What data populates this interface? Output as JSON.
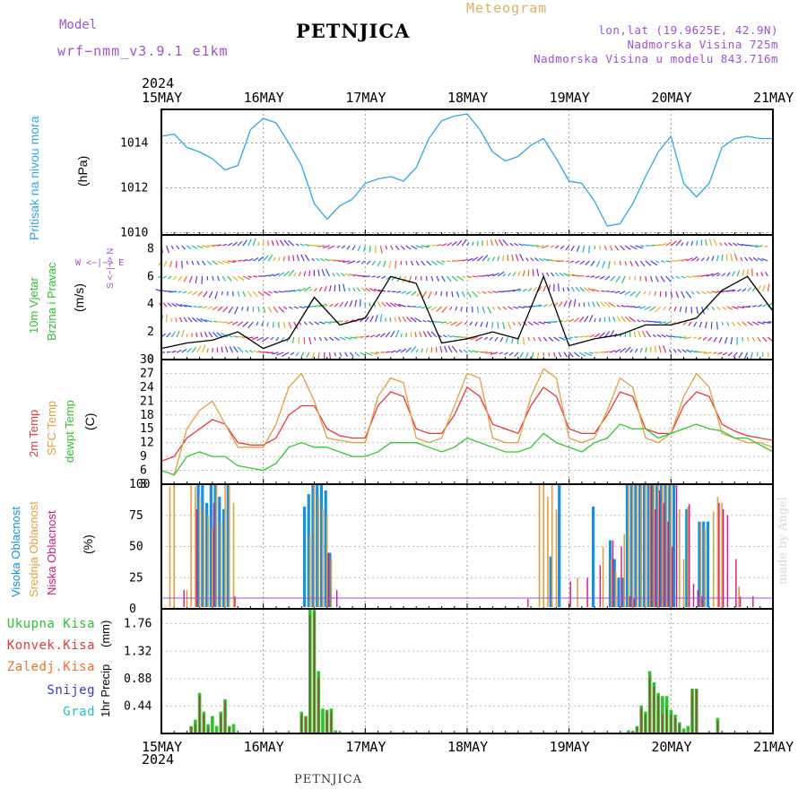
{
  "header": {
    "title": "PETNJICA",
    "model_label": "Model",
    "model_name": "wrf−nmm_v3.9.1 e1km",
    "meteogram_label": "Meteogram",
    "location_line": "lon,lat (19.9625E, 42.9N)",
    "altitude_line": "Nadmorska Visina 725m",
    "model_altitude_line": "Nadmorska Visina u modelu 843.716m",
    "year": "2024",
    "footer": "PETNJICA",
    "credit": "made by Angel"
  },
  "colors": {
    "pressure": "#30a8e0",
    "temp2m": "#e83838",
    "sfc_temp": "#e0a040",
    "dewpoint": "#30c830",
    "cloud_high": "#1890e0",
    "cloud_mid": "#e0a040",
    "cloud_low": "#d01880",
    "total_precip": "#30c030",
    "conv_precip": "#e83838",
    "snow": "#3838d0",
    "hail": "#20c0c0",
    "violet": "#a050d0"
  },
  "chart_data": [
    {
      "type": "line",
      "name": "pressure",
      "ylabel": "Pritisak na nivou mora",
      "unit": "(hPa)",
      "x_ticks": [
        "15MAY",
        "16MAY",
        "17MAY",
        "18MAY",
        "19MAY",
        "20MAY",
        "21MAY"
      ],
      "ylim": [
        1009.9,
        1015.5
      ],
      "y_ticks": [
        1010,
        1012,
        1014
      ],
      "x_hours": [
        0,
        3,
        6,
        9,
        12,
        15,
        18,
        21,
        24,
        27,
        30,
        33,
        36,
        39,
        42,
        45,
        48,
        51,
        54,
        57,
        60,
        63,
        66,
        69,
        72,
        75,
        78,
        81,
        84,
        87,
        90,
        93,
        96,
        99,
        102,
        105,
        108,
        111,
        114,
        117,
        120,
        123,
        126,
        129,
        132,
        135,
        138,
        141,
        144
      ],
      "values": [
        1014.3,
        1014.4,
        1013.8,
        1013.6,
        1013.3,
        1012.8,
        1013.0,
        1014.6,
        1015.1,
        1014.9,
        1014.0,
        1013.0,
        1011.3,
        1010.6,
        1011.2,
        1011.5,
        1012.2,
        1012.4,
        1012.5,
        1012.3,
        1012.9,
        1014.2,
        1015.0,
        1015.2,
        1015.3,
        1014.6,
        1013.6,
        1013.2,
        1013.4,
        1013.9,
        1014.2,
        1013.3,
        1012.3,
        1012.2,
        1011.4,
        1010.3,
        1010.4,
        1011.3,
        1012.5,
        1013.6,
        1014.3,
        1012.2,
        1011.6,
        1012.2,
        1013.8,
        1014.2,
        1014.3,
        1014.2,
        1014.2
      ]
    },
    {
      "type": "line",
      "name": "wind",
      "ylabel": "10m Vjetar Brzina i Pravac",
      "unit": "(m/s)",
      "compass": "W <−|−> E  S <−|−> N",
      "ylim": [
        0,
        9
      ],
      "y_ticks": [
        0,
        2,
        4,
        6,
        8
      ],
      "x_hours": [
        0,
        6,
        12,
        18,
        24,
        30,
        36,
        42,
        48,
        54,
        60,
        66,
        72,
        78,
        84,
        90,
        96,
        102,
        108,
        114,
        120,
        126,
        132,
        138,
        144
      ],
      "series": [
        {
          "name": "wind_speed",
          "values": [
            0.8,
            1.2,
            1.4,
            2.0,
            0.8,
            1.5,
            4.5,
            2.5,
            3.0,
            6.0,
            5.5,
            1.2,
            1.5,
            2.0,
            1.5,
            6.0,
            1.0,
            1.5,
            1.8,
            2.5,
            2.5,
            3.0,
            5.0,
            6.0,
            3.5
          ]
        }
      ]
    },
    {
      "type": "line",
      "name": "temperature",
      "ylabel_series": [
        "2m Temp",
        "SFC Temp",
        "dewpt Temp"
      ],
      "unit": "(C)",
      "ylim": [
        3,
        30
      ],
      "y_ticks": [
        3,
        6,
        9,
        12,
        15,
        18,
        21,
        24,
        27,
        30
      ],
      "x_hours": [
        0,
        3,
        6,
        9,
        12,
        15,
        18,
        21,
        24,
        27,
        30,
        33,
        36,
        39,
        42,
        45,
        48,
        51,
        54,
        57,
        60,
        63,
        66,
        69,
        72,
        75,
        78,
        81,
        84,
        87,
        90,
        93,
        96,
        99,
        102,
        105,
        108,
        111,
        114,
        117,
        120,
        123,
        126,
        129,
        132,
        135,
        138,
        141,
        144
      ],
      "series": [
        {
          "name": "2m Temp",
          "values": [
            8,
            9,
            13,
            15,
            17,
            16,
            12,
            11.5,
            11.5,
            13,
            18,
            20,
            20,
            15,
            13.5,
            13,
            13,
            20,
            23,
            22,
            15,
            14,
            14,
            18,
            24,
            22,
            16,
            15,
            14,
            20,
            24,
            22,
            15,
            14,
            14,
            18,
            23,
            22,
            15,
            14,
            14,
            20,
            23,
            22,
            16,
            14.5,
            13.5,
            13,
            12.5
          ]
        },
        {
          "name": "SFC Temp",
          "values": [
            6,
            5,
            15,
            19,
            21,
            16,
            11,
            11,
            11,
            16,
            24,
            27,
            21,
            13,
            12.5,
            12,
            12,
            22,
            26,
            25,
            13,
            12,
            13,
            20,
            27,
            26,
            13,
            12,
            12,
            22,
            28,
            26,
            13,
            12,
            13,
            19,
            26,
            24,
            13,
            12,
            14,
            22,
            27,
            24,
            14,
            13,
            12,
            12,
            11
          ]
        },
        {
          "name": "dewpt Temp",
          "values": [
            6,
            5,
            9,
            10,
            9,
            9,
            7,
            6.5,
            6,
            7.5,
            11,
            12,
            11,
            11,
            10,
            9,
            9,
            10,
            12,
            12,
            12,
            11,
            10,
            11,
            13,
            12,
            11,
            10,
            10,
            11,
            14,
            12,
            11,
            10,
            12,
            13,
            16,
            15,
            15,
            13,
            14,
            15,
            16,
            15,
            14.5,
            13,
            13,
            11.5,
            10
          ]
        }
      ]
    },
    {
      "type": "bar",
      "name": "clouds",
      "ylabel_series": [
        "Visoka Oblacnost",
        "Srednja Oblacnost",
        "Niska Oblacnost"
      ],
      "unit": "(%)",
      "ylim": [
        0,
        100
      ],
      "y_ticks": [
        0,
        25,
        50,
        75,
        100
      ],
      "series": [
        {
          "name": "Visoka Oblacnost",
          "x_hours": [
            9,
            10,
            11,
            12,
            13,
            14,
            15,
            16,
            34,
            35,
            36,
            37,
            38,
            39,
            40,
            92,
            94,
            102,
            106,
            107,
            108,
            109,
            110,
            111,
            112,
            113,
            114,
            115,
            116,
            117,
            118,
            119,
            120,
            121,
            124,
            127,
            128,
            129
          ],
          "values": [
            100,
            100,
            85,
            100,
            100,
            90,
            80,
            100,
            82,
            92,
            100,
            100,
            100,
            95,
            45,
            42,
            100,
            82,
            55,
            40,
            25,
            25,
            100,
            100,
            100,
            100,
            100,
            100,
            100,
            100,
            100,
            100,
            100,
            100,
            80,
            70,
            70,
            70
          ]
        },
        {
          "name": "Srednja Oblacnost",
          "x_hours": [
            1,
            2,
            3,
            6,
            7,
            8,
            9,
            10,
            11,
            12,
            13,
            14,
            15,
            16,
            17,
            35,
            36,
            37,
            38,
            39,
            40,
            89,
            90,
            91,
            92,
            93,
            98,
            104,
            106,
            107,
            109,
            110,
            111,
            112,
            113,
            114,
            115,
            116,
            117,
            118,
            119,
            120,
            122,
            123,
            124,
            127,
            128,
            130,
            131,
            132,
            136
          ],
          "values": [
            2,
            98,
            100,
            15,
            100,
            98,
            90,
            80,
            75,
            65,
            100,
            70,
            100,
            100,
            85,
            60,
            100,
            90,
            80,
            75,
            40,
            100,
            100,
            90,
            100,
            80,
            25,
            50,
            40,
            30,
            60,
            100,
            100,
            100,
            100,
            100,
            100,
            100,
            100,
            100,
            100,
            100,
            80,
            40,
            82,
            70,
            65,
            78,
            90,
            85,
            18
          ]
        },
        {
          "name": "Niska Oblacnost",
          "x_hours": [
            5,
            8,
            12,
            17,
            39,
            41,
            86,
            96,
            100,
            103,
            106,
            108,
            110,
            111,
            115,
            116,
            117,
            118,
            119,
            120,
            121,
            124,
            125,
            126,
            127,
            131,
            132,
            133,
            135,
            136,
            139
          ],
          "values": [
            15,
            80,
            85,
            10,
            45,
            15,
            8,
            22,
            25,
            35,
            55,
            50,
            10,
            8,
            100,
            80,
            95,
            85,
            70,
            50,
            100,
            84,
            20,
            15,
            10,
            85,
            80,
            75,
            40,
            10,
            10
          ]
        }
      ]
    },
    {
      "type": "bar",
      "name": "precipitation",
      "ylabel": "1hr Precip",
      "unit": "(mm)",
      "legend": [
        "Ukupna Kisa",
        "Konvek.Kisa",
        "Zaledj.Kisa",
        "Snijeg",
        "Grad"
      ],
      "ylim": [
        0,
        2.0
      ],
      "y_ticks": [
        0.44,
        0.88,
        1.32,
        1.76
      ],
      "series": [
        {
          "name": "Ukupna Kisa",
          "x_hours": [
            7,
            8,
            9,
            10,
            11,
            12,
            13,
            14,
            15,
            16,
            17,
            33,
            34,
            35,
            36,
            37,
            38,
            39,
            40,
            41,
            42,
            110,
            111,
            112,
            113,
            114,
            115,
            116,
            117,
            118,
            119,
            120,
            121,
            122,
            123,
            124,
            125,
            126,
            131
          ],
          "values": [
            0.12,
            0.22,
            0.65,
            0.35,
            0.15,
            0.28,
            0.12,
            0.35,
            0.55,
            0.12,
            0.15,
            0.35,
            0.28,
            2.0,
            2.0,
            1.0,
            0.4,
            0.38,
            0.4,
            0.05,
            0.02,
            0.05,
            0.04,
            0.12,
            0.45,
            0.35,
            1.0,
            0.82,
            0.65,
            0.6,
            0.6,
            0.38,
            0.3,
            0.18,
            0.08,
            0.12,
            0.72,
            0.72,
            0.25
          ]
        },
        {
          "name": "Konvek.Kisa",
          "x_hours": [
            7,
            8,
            9,
            10,
            11,
            14,
            15,
            16,
            33,
            34,
            35,
            36,
            37,
            39,
            40,
            111,
            112,
            113,
            114,
            115,
            116,
            117,
            118,
            119,
            120,
            121,
            122,
            125,
            126,
            131
          ],
          "values": [
            0.1,
            0.15,
            0.6,
            0.3,
            0.1,
            0.3,
            0.5,
            0.1,
            0.3,
            0.25,
            1.9,
            1.95,
            0.9,
            0.35,
            0.35,
            0.03,
            0.1,
            0.4,
            0.3,
            0.9,
            0.75,
            0.6,
            0.3,
            0.4,
            0.3,
            0.25,
            0.15,
            0.7,
            0.7,
            0.2
          ]
        }
      ]
    }
  ]
}
